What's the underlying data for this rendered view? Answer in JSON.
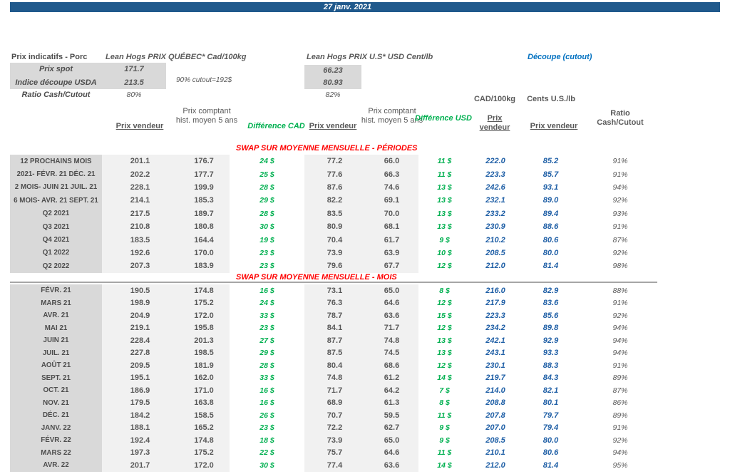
{
  "meta": {
    "date": "27 janv. 2021"
  },
  "colors": {
    "bar_blue": "#20598C",
    "accent_blue": "#0070C0",
    "value_blue": "#1F5FA6",
    "diff_green": "#00B050",
    "section_red": "#FF0000",
    "label_gray_bg": "#D9D9D9",
    "band_gray_bg": "#F1F1F1"
  },
  "summary": {
    "title": "Prix indicatifs - Porc",
    "quebec_header": "Lean Hogs PRIX QUÉBEC* Cad/100kg",
    "us_header": "Lean Hogs PRIX U.S* USD Cent/lb",
    "cutout_header": "Découpe (cutout)",
    "spot_label": "Prix spot",
    "spot_cad": "171.7",
    "spot_usd": "66.23",
    "usda_label": "Indice découpe USDA",
    "usda_cad": "213.5",
    "usda_usd": "80.93",
    "cutout_note": "90% cutout=192$",
    "ratio_label": "Ratio Cash/Cutout",
    "ratio_cad": "80%",
    "ratio_usd": "82%"
  },
  "table": {
    "unit_cad": "CAD/100kg",
    "unit_us": "Cents U.S./lb",
    "headers": {
      "prix_vendeur": "Prix vendeur",
      "prix_comptant": "Prix comptant hist. moyen 5 ans",
      "diff_cad": "Différence CAD",
      "diff_usd": "Différence USD",
      "ratio": "Ratio Cash/Cutout"
    },
    "section1_title": "SWAP SUR MOYENNE MENSUELLE - PÉRIODES",
    "section2_title": "SWAP SUR MOYENNE MENSUELLE - MOIS",
    "periods": [
      [
        "12 PROCHAINS MOIS",
        "201.1",
        "176.7",
        "24 $",
        "77.2",
        "66.0",
        "11 $",
        "222.0",
        "85.2",
        "91%"
      ],
      [
        "2021- FÉVR. 21 DÉC. 21",
        "202.2",
        "177.7",
        "25 $",
        "77.6",
        "66.3",
        "11 $",
        "223.3",
        "85.7",
        "91%"
      ],
      [
        "2 MOIS- JUIN 21 JUIL. 21",
        "228.1",
        "199.9",
        "28 $",
        "87.6",
        "74.6",
        "13 $",
        "242.6",
        "93.1",
        "94%"
      ],
      [
        "6 MOIS- AVR. 21 SEPT. 21",
        "214.1",
        "185.3",
        "29 $",
        "82.2",
        "69.1",
        "13 $",
        "232.1",
        "89.0",
        "92%"
      ],
      [
        "Q2 2021",
        "217.5",
        "189.7",
        "28 $",
        "83.5",
        "70.0",
        "13 $",
        "233.2",
        "89.4",
        "93%"
      ],
      [
        "Q3 2021",
        "210.8",
        "180.8",
        "30 $",
        "80.9",
        "68.1",
        "13 $",
        "230.9",
        "88.6",
        "91%"
      ],
      [
        "Q4 2021",
        "183.5",
        "164.4",
        "19 $",
        "70.4",
        "61.7",
        "9 $",
        "210.2",
        "80.6",
        "87%"
      ],
      [
        "Q1 2022",
        "192.6",
        "170.0",
        "23 $",
        "73.9",
        "63.9",
        "10 $",
        "208.5",
        "80.0",
        "92%"
      ],
      [
        "Q2 2022",
        "207.3",
        "183.9",
        "23 $",
        "79.6",
        "67.7",
        "12 $",
        "212.0",
        "81.4",
        "98%"
      ]
    ],
    "months": [
      [
        "FÉVR. 21",
        "190.5",
        "174.8",
        "16 $",
        "73.1",
        "65.0",
        "8 $",
        "216.0",
        "82.9",
        "88%"
      ],
      [
        "MARS 21",
        "198.9",
        "175.2",
        "24 $",
        "76.3",
        "64.6",
        "12 $",
        "217.9",
        "83.6",
        "91%"
      ],
      [
        "AVR. 21",
        "204.9",
        "172.0",
        "33 $",
        "78.7",
        "63.6",
        "15 $",
        "223.3",
        "85.6",
        "92%"
      ],
      [
        "MAI 21",
        "219.1",
        "195.8",
        "23 $",
        "84.1",
        "71.7",
        "12 $",
        "234.2",
        "89.8",
        "94%"
      ],
      [
        "JUIN 21",
        "228.4",
        "201.3",
        "27 $",
        "87.7",
        "74.8",
        "13 $",
        "242.1",
        "92.9",
        "94%"
      ],
      [
        "JUIL. 21",
        "227.8",
        "198.5",
        "29 $",
        "87.5",
        "74.5",
        "13 $",
        "243.1",
        "93.3",
        "94%"
      ],
      [
        "AOÛT 21",
        "209.5",
        "181.9",
        "28 $",
        "80.4",
        "68.6",
        "12 $",
        "230.1",
        "88.3",
        "91%"
      ],
      [
        "SEPT. 21",
        "195.1",
        "162.0",
        "33 $",
        "74.8",
        "61.2",
        "14 $",
        "219.7",
        "84.3",
        "89%"
      ],
      [
        "OCT. 21",
        "186.9",
        "171.0",
        "16 $",
        "71.7",
        "64.2",
        "7 $",
        "214.0",
        "82.1",
        "87%"
      ],
      [
        "NOV. 21",
        "179.5",
        "163.8",
        "16 $",
        "68.9",
        "61.3",
        "8 $",
        "208.8",
        "80.1",
        "86%"
      ],
      [
        "DÉC. 21",
        "184.2",
        "158.5",
        "26 $",
        "70.7",
        "59.5",
        "11 $",
        "207.8",
        "79.7",
        "89%"
      ],
      [
        "JANV. 22",
        "188.1",
        "165.2",
        "23 $",
        "72.2",
        "62.7",
        "9 $",
        "207.0",
        "79.4",
        "91%"
      ],
      [
        "FÉVR. 22",
        "192.4",
        "174.8",
        "18 $",
        "73.9",
        "65.0",
        "9 $",
        "208.5",
        "80.0",
        "92%"
      ],
      [
        "MARS 22",
        "197.3",
        "175.2",
        "22 $",
        "75.7",
        "64.6",
        "11 $",
        "210.1",
        "80.6",
        "94%"
      ],
      [
        "AVR. 22",
        "201.7",
        "172.0",
        "30 $",
        "77.4",
        "63.6",
        "14 $",
        "212.0",
        "81.4",
        "95%"
      ]
    ]
  }
}
